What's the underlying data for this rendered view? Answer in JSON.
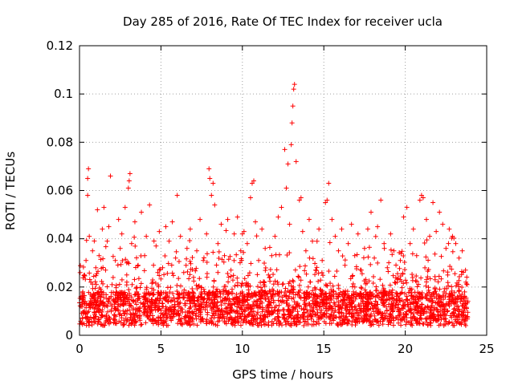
{
  "chart_data": {
    "type": "scatter",
    "title": "Day 285 of 2016, Rate Of TEC Index for receiver ucla",
    "xlabel": "GPS time / hours",
    "ylabel": "ROTI / TECUs",
    "xlim": [
      0,
      25
    ],
    "ylim": [
      0,
      0.12
    ],
    "x_ticks": [
      0,
      5,
      10,
      15,
      20,
      25
    ],
    "x_tick_labels": [
      "0",
      "5",
      "10",
      "15",
      "20",
      "25"
    ],
    "y_ticks": [
      0,
      0.02,
      0.04,
      0.06,
      0.08,
      0.1,
      0.12
    ],
    "y_tick_labels": [
      "0",
      "0.02",
      "0.04",
      "0.06",
      "0.08",
      "0.1",
      "0.12"
    ],
    "grid": true,
    "marker": "+",
    "color": "#ff0000",
    "series": [
      {
        "name": "ROTI",
        "points": [
          [
            0.1,
            0.012
          ],
          [
            0.2,
            0.018
          ],
          [
            0.3,
            0.025
          ],
          [
            0.4,
            0.031
          ],
          [
            0.5,
            0.058
          ],
          [
            0.5,
            0.065
          ],
          [
            0.55,
            0.069
          ],
          [
            0.6,
            0.041
          ],
          [
            0.7,
            0.022
          ],
          [
            0.8,
            0.035
          ],
          [
            0.9,
            0.015
          ],
          [
            1.0,
            0.028
          ],
          [
            1.1,
            0.052
          ],
          [
            1.2,
            0.033
          ],
          [
            1.3,
            0.019
          ],
          [
            1.4,
            0.044
          ],
          [
            1.5,
            0.053
          ],
          [
            1.6,
            0.027
          ],
          [
            1.7,
            0.039
          ],
          [
            1.8,
            0.045
          ],
          [
            1.9,
            0.066
          ],
          [
            2.0,
            0.021
          ],
          [
            2.2,
            0.031
          ],
          [
            2.4,
            0.048
          ],
          [
            2.5,
            0.036
          ],
          [
            2.6,
            0.042
          ],
          [
            2.8,
            0.053
          ],
          [
            2.9,
            0.025
          ],
          [
            3.0,
            0.061
          ],
          [
            3.05,
            0.064
          ],
          [
            3.1,
            0.067
          ],
          [
            3.2,
            0.038
          ],
          [
            3.4,
            0.047
          ],
          [
            3.6,
            0.029
          ],
          [
            3.8,
            0.051
          ],
          [
            4.0,
            0.033
          ],
          [
            4.1,
            0.041
          ],
          [
            4.3,
            0.054
          ],
          [
            4.5,
            0.022
          ],
          [
            4.7,
            0.037
          ],
          [
            4.9,
            0.043
          ],
          [
            5.1,
            0.028
          ],
          [
            5.3,
            0.045
          ],
          [
            5.5,
            0.039
          ],
          [
            5.7,
            0.047
          ],
          [
            5.9,
            0.032
          ],
          [
            6.0,
            0.058
          ],
          [
            6.2,
            0.041
          ],
          [
            6.4,
            0.026
          ],
          [
            6.6,
            0.036
          ],
          [
            6.8,
            0.044
          ],
          [
            7.0,
            0.024
          ],
          [
            7.2,
            0.035
          ],
          [
            7.4,
            0.048
          ],
          [
            7.6,
            0.031
          ],
          [
            7.8,
            0.042
          ],
          [
            7.95,
            0.069
          ],
          [
            8.0,
            0.065
          ],
          [
            8.1,
            0.058
          ],
          [
            8.2,
            0.063
          ],
          [
            8.3,
            0.054
          ],
          [
            8.5,
            0.038
          ],
          [
            8.7,
            0.046
          ],
          [
            8.9,
            0.033
          ],
          [
            9.1,
            0.048
          ],
          [
            9.3,
            0.027
          ],
          [
            9.5,
            0.042
          ],
          [
            9.7,
            0.049
          ],
          [
            9.9,
            0.035
          ],
          [
            10.0,
            0.042
          ],
          [
            10.1,
            0.043
          ],
          [
            10.3,
            0.038
          ],
          [
            10.5,
            0.057
          ],
          [
            10.6,
            0.063
          ],
          [
            10.7,
            0.064
          ],
          [
            10.8,
            0.047
          ],
          [
            11.0,
            0.031
          ],
          [
            11.2,
            0.044
          ],
          [
            11.4,
            0.036
          ],
          [
            11.6,
            0.025
          ],
          [
            11.8,
            0.033
          ],
          [
            12.0,
            0.041
          ],
          [
            12.2,
            0.049
          ],
          [
            12.4,
            0.053
          ],
          [
            12.6,
            0.077
          ],
          [
            12.7,
            0.061
          ],
          [
            12.8,
            0.071
          ],
          [
            12.9,
            0.046
          ],
          [
            13.0,
            0.079
          ],
          [
            13.05,
            0.088
          ],
          [
            13.1,
            0.095
          ],
          [
            13.15,
            0.102
          ],
          [
            13.2,
            0.104
          ],
          [
            13.3,
            0.072
          ],
          [
            13.5,
            0.056
          ],
          [
            13.6,
            0.057
          ],
          [
            13.7,
            0.043
          ],
          [
            13.9,
            0.035
          ],
          [
            14.1,
            0.048
          ],
          [
            14.3,
            0.039
          ],
          [
            14.5,
            0.027
          ],
          [
            14.7,
            0.044
          ],
          [
            14.9,
            0.031
          ],
          [
            15.1,
            0.055
          ],
          [
            15.2,
            0.056
          ],
          [
            15.3,
            0.063
          ],
          [
            15.5,
            0.048
          ],
          [
            15.7,
            0.041
          ],
          [
            15.9,
            0.035
          ],
          [
            16.1,
            0.044
          ],
          [
            16.3,
            0.029
          ],
          [
            16.5,
            0.038
          ],
          [
            16.7,
            0.046
          ],
          [
            16.9,
            0.033
          ],
          [
            17.1,
            0.042
          ],
          [
            17.3,
            0.027
          ],
          [
            17.5,
            0.036
          ],
          [
            17.7,
            0.044
          ],
          [
            17.9,
            0.051
          ],
          [
            18.1,
            0.032
          ],
          [
            18.3,
            0.045
          ],
          [
            18.5,
            0.056
          ],
          [
            18.7,
            0.038
          ],
          [
            18.9,
            0.028
          ],
          [
            19.1,
            0.042
          ],
          [
            19.3,
            0.035
          ],
          [
            19.5,
            0.022
          ],
          [
            19.7,
            0.031
          ],
          [
            19.9,
            0.049
          ],
          [
            20.1,
            0.053
          ],
          [
            20.3,
            0.038
          ],
          [
            20.5,
            0.044
          ],
          [
            20.7,
            0.033
          ],
          [
            20.9,
            0.056
          ],
          [
            21.0,
            0.058
          ],
          [
            21.1,
            0.057
          ],
          [
            21.3,
            0.048
          ],
          [
            21.5,
            0.041
          ],
          [
            21.7,
            0.055
          ],
          [
            21.9,
            0.043
          ],
          [
            22.1,
            0.051
          ],
          [
            22.3,
            0.046
          ],
          [
            22.5,
            0.036
          ],
          [
            22.7,
            0.044
          ],
          [
            22.9,
            0.041
          ],
          [
            23.1,
            0.038
          ],
          [
            23.3,
            0.032
          ],
          [
            23.5,
            0.035
          ],
          [
            23.7,
            0.027
          ],
          [
            23.8,
            0.021
          ]
        ]
      }
    ]
  }
}
